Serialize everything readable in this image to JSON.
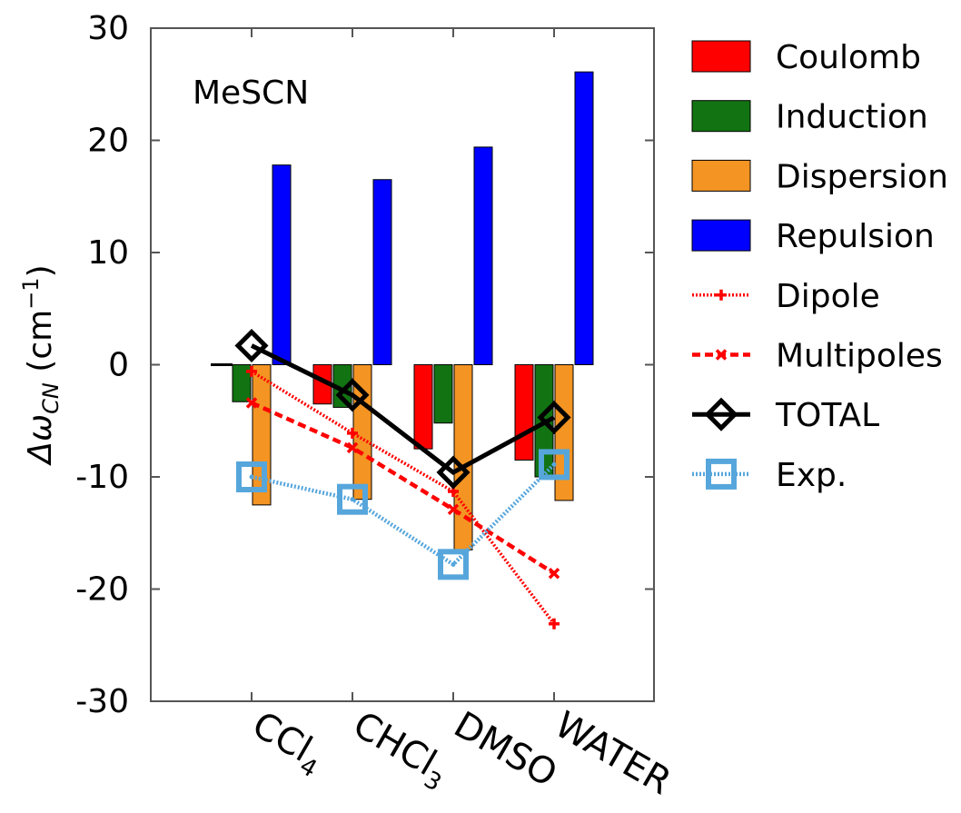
{
  "chart_data": {
    "type": "bar",
    "annotation": "MeSCN",
    "ylabel": {
      "main": "Δω",
      "sub": "CN",
      "unit_pre": " (cm",
      "unit_sup": "−1",
      "unit_post": ")"
    },
    "ylim": [
      -30,
      30
    ],
    "yticks": [
      30,
      20,
      10,
      0,
      -10,
      -20,
      -30
    ],
    "ytick_labels": [
      "30",
      "20",
      "10",
      "0",
      "-10",
      "-20",
      "-30"
    ],
    "categories": [
      {
        "main": "CCl",
        "sub": "4"
      },
      {
        "main": "CHCl",
        "sub": "3"
      },
      {
        "main": "DMSO",
        "sub": ""
      },
      {
        "main": "WATER",
        "sub": ""
      }
    ],
    "bar_series": [
      {
        "name": "Coulomb",
        "color": "#ff0000",
        "values": [
          0.0,
          -3.5,
          -7.5,
          -8.5
        ]
      },
      {
        "name": "Induction",
        "color": "#127312",
        "values": [
          -3.3,
          -3.8,
          -5.2,
          -10.0
        ]
      },
      {
        "name": "Dispersion",
        "color": "#f39423",
        "values": [
          -12.5,
          -12.0,
          -16.5,
          -12.1
        ]
      },
      {
        "name": "Repulsion",
        "color": "#0000ff",
        "values": [
          17.8,
          16.5,
          19.4,
          26.1
        ]
      }
    ],
    "line_series": [
      {
        "name": "Dipole",
        "color": "#ff0000",
        "style": "dotted",
        "marker": "plus",
        "values": [
          -0.6,
          -6.1,
          -11.3,
          -23.1
        ]
      },
      {
        "name": "Multipoles",
        "color": "#ff0000",
        "style": "dashed",
        "marker": "cross",
        "values": [
          -3.4,
          -7.4,
          -12.9,
          -18.6
        ]
      },
      {
        "name": "TOTAL",
        "color": "#000000",
        "style": "solid",
        "marker": "diamond",
        "values": [
          1.7,
          -2.7,
          -9.6,
          -4.7
        ]
      },
      {
        "name": "Exp.",
        "color": "#56a6dc",
        "style": "dotted",
        "marker": "square",
        "values": [
          -10.0,
          -12.0,
          -17.8,
          -8.9
        ]
      }
    ],
    "legend_position": "right",
    "grid": false
  }
}
